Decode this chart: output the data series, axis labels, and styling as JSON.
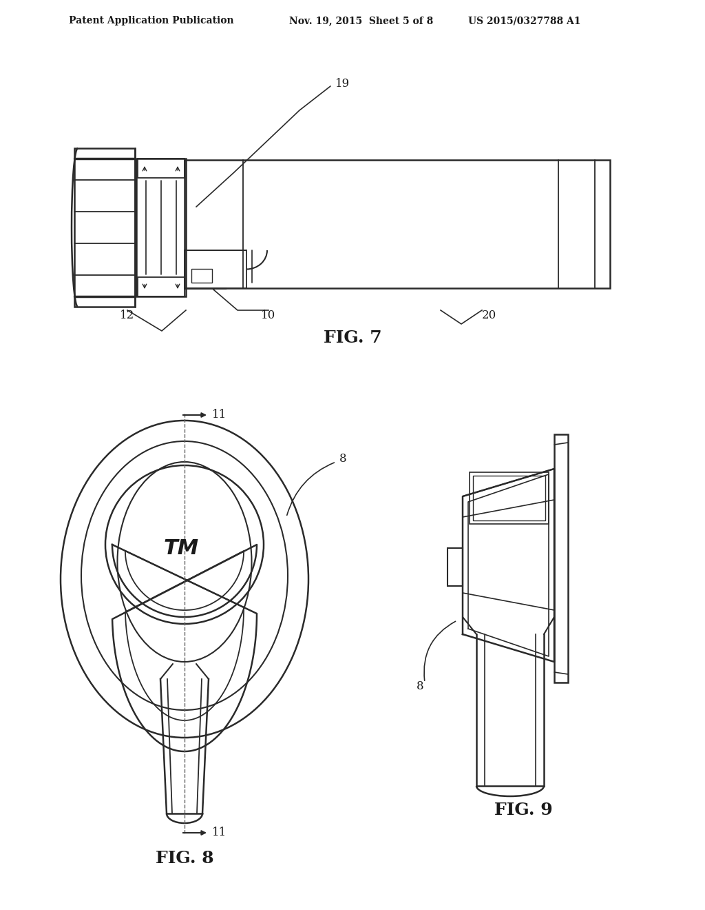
{
  "bg_color": "#ffffff",
  "line_color": "#2a2a2a",
  "text_color": "#1a1a1a",
  "header_left": "Patent Application Publication",
  "header_mid": "Nov. 19, 2015  Sheet 5 of 8",
  "header_right": "US 2015/0327788 A1",
  "fig7_label": "FIG. 7",
  "fig8_label": "FIG. 8",
  "fig9_label": "FIG. 9"
}
